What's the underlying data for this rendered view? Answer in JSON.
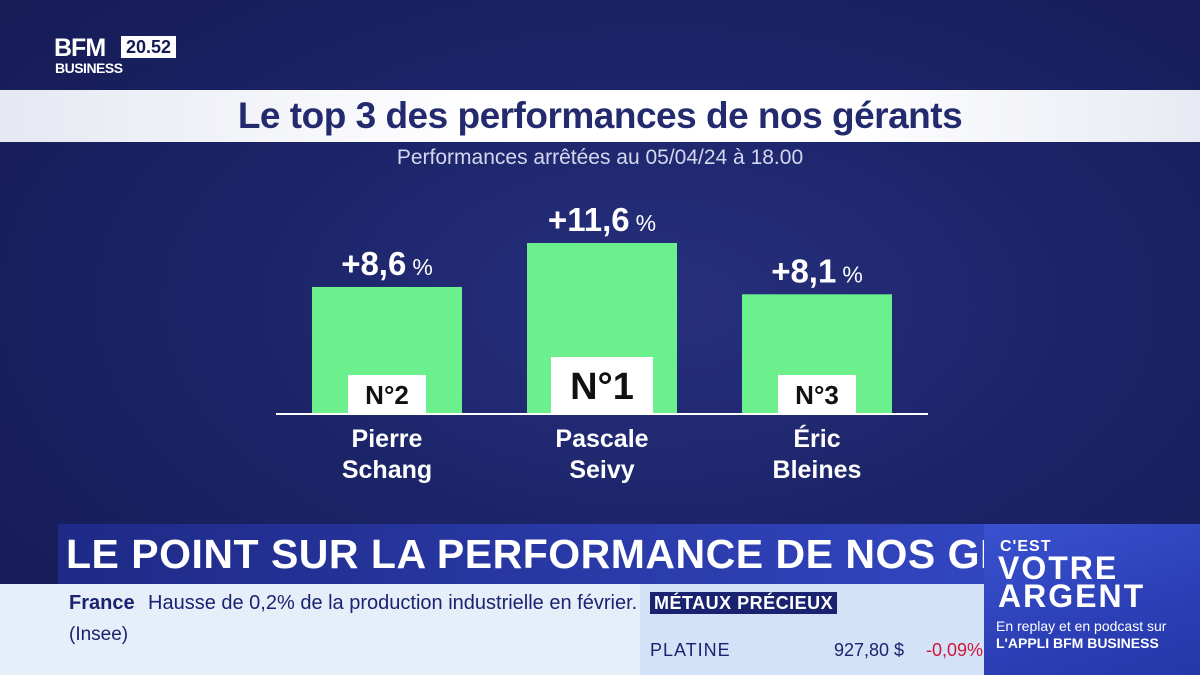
{
  "channel": {
    "logo_top": "BFM",
    "logo_bottom": "BUSINESS",
    "time": "20.52"
  },
  "colors": {
    "bar": "#6cf08e",
    "background": "#1c2468",
    "title_band": "#ffffff"
  },
  "chart_data": {
    "type": "bar",
    "title": "Le top 3 des performances de nos gérants",
    "subtitle": "Performances arrêtées au 05/04/24 à 18.00",
    "categories": [
      "Pierre Schang",
      "Pascale Seivy",
      "Éric Bleines"
    ],
    "values": [
      8.6,
      11.6,
      8.1
    ],
    "value_labels": [
      "+8,6",
      "+11,6",
      "+8,1"
    ],
    "unit": "%",
    "ranks": [
      "N°2",
      "N°1",
      "N°3"
    ],
    "name_lines": [
      [
        "Pierre",
        "Schang"
      ],
      [
        "Pascale",
        "Seivy"
      ],
      [
        "Éric",
        "Bleines"
      ]
    ],
    "ylim": [
      0,
      11.6
    ],
    "grid": false,
    "legend": "none"
  },
  "lower_third": {
    "title": "LE POINT SUR LA PERFORMANCE DE NOS GÉRANTS"
  },
  "ticker": {
    "country": "France",
    "headline": "Hausse de 0,2% de la production industrielle en février.",
    "source": "(Insee)",
    "market_label": "MÉTAUX PRÉCIEUX",
    "metal": "PLATINE",
    "price": "927,80 $",
    "change": "-0,09%"
  },
  "promo": {
    "line_cest": "C'EST",
    "line_votre": "VOTRE",
    "line_argent": "ARGENT",
    "sub1": "En replay et en podcast sur",
    "sub2": "L'APPLI BFM BUSINESS"
  }
}
